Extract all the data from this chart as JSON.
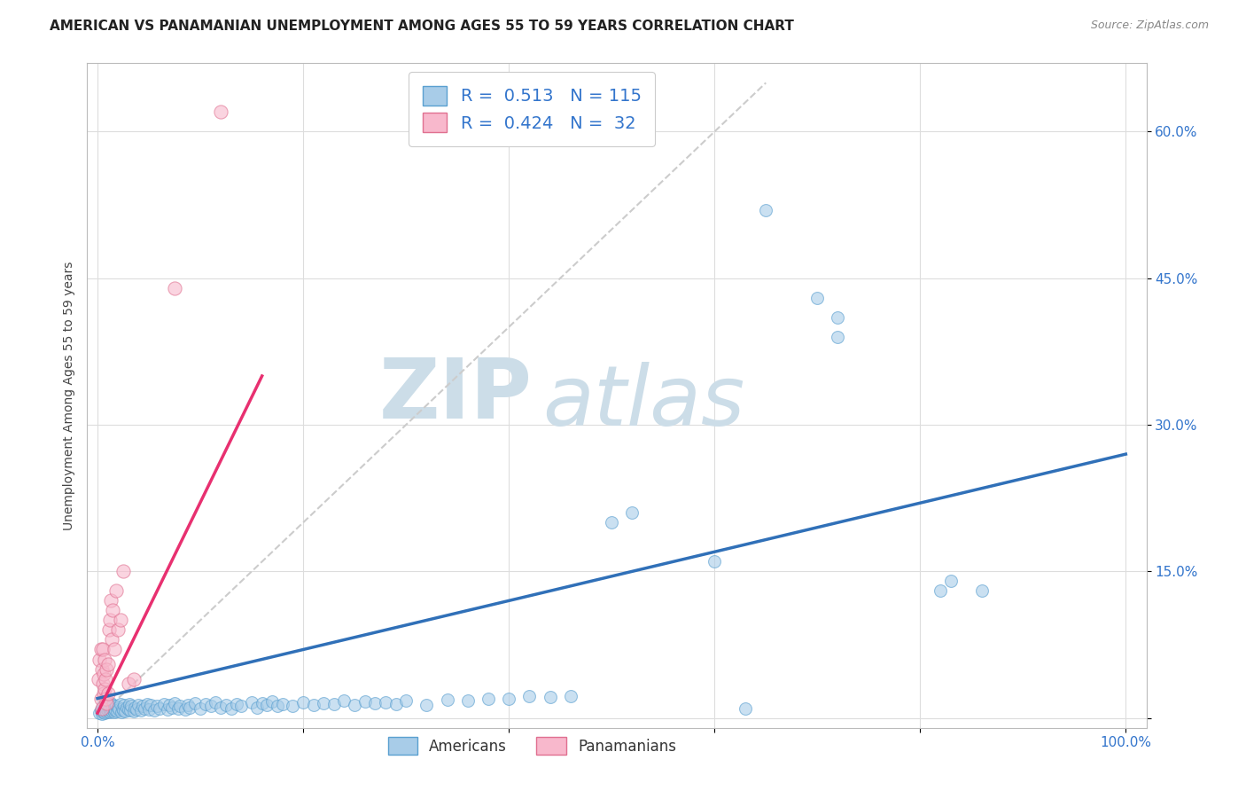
{
  "title": "AMERICAN VS PANAMANIAN UNEMPLOYMENT AMONG AGES 55 TO 59 YEARS CORRELATION CHART",
  "source": "Source: ZipAtlas.com",
  "ylabel": "Unemployment Among Ages 55 to 59 years",
  "xlim": [
    -0.01,
    1.02
  ],
  "ylim": [
    -0.01,
    0.67
  ],
  "xticks": [
    0.0,
    0.2,
    0.4,
    0.6,
    0.8,
    1.0
  ],
  "xticklabels": [
    "0.0%",
    "",
    "",
    "",
    "",
    "100.0%"
  ],
  "ytick_positions": [
    0.0,
    0.15,
    0.3,
    0.45,
    0.6
  ],
  "yticklabels": [
    "",
    "15.0%",
    "30.0%",
    "45.0%",
    "60.0%"
  ],
  "american_R": 0.513,
  "american_N": 115,
  "panamanian_R": 0.424,
  "panamanian_N": 32,
  "blue_color": "#a8cce8",
  "blue_edge_color": "#5aa0d0",
  "blue_line_color": "#3070b8",
  "pink_color": "#f8b8cc",
  "pink_edge_color": "#e07090",
  "pink_line_color": "#e83070",
  "dashed_line_color": "#cccccc",
  "legend_text_color": "#3375cc",
  "watermark_color": "#ccdde8",
  "background_color": "#ffffff",
  "title_fontsize": 11,
  "axis_label_fontsize": 10,
  "tick_label_fontsize": 11,
  "legend_fontsize": 14,
  "american_x": [
    0.002,
    0.003,
    0.004,
    0.004,
    0.005,
    0.005,
    0.006,
    0.006,
    0.007,
    0.007,
    0.008,
    0.008,
    0.009,
    0.009,
    0.01,
    0.01,
    0.011,
    0.011,
    0.012,
    0.012,
    0.013,
    0.013,
    0.014,
    0.014,
    0.015,
    0.015,
    0.016,
    0.016,
    0.017,
    0.018,
    0.019,
    0.02,
    0.021,
    0.022,
    0.023,
    0.024,
    0.025,
    0.026,
    0.027,
    0.028,
    0.03,
    0.031,
    0.032,
    0.033,
    0.035,
    0.036,
    0.038,
    0.04,
    0.042,
    0.044,
    0.046,
    0.048,
    0.05,
    0.052,
    0.055,
    0.058,
    0.06,
    0.065,
    0.068,
    0.07,
    0.072,
    0.075,
    0.078,
    0.08,
    0.085,
    0.088,
    0.09,
    0.095,
    0.1,
    0.105,
    0.11,
    0.115,
    0.12,
    0.125,
    0.13,
    0.135,
    0.14,
    0.15,
    0.155,
    0.16,
    0.165,
    0.17,
    0.175,
    0.18,
    0.19,
    0.2,
    0.21,
    0.22,
    0.23,
    0.24,
    0.25,
    0.26,
    0.27,
    0.28,
    0.29,
    0.3,
    0.32,
    0.34,
    0.36,
    0.38,
    0.4,
    0.42,
    0.44,
    0.46,
    0.5,
    0.52,
    0.6,
    0.63,
    0.65,
    0.7,
    0.72,
    0.72,
    0.82,
    0.83,
    0.86
  ],
  "american_y": [
    0.005,
    0.008,
    0.004,
    0.01,
    0.006,
    0.012,
    0.007,
    0.009,
    0.005,
    0.011,
    0.008,
    0.013,
    0.006,
    0.01,
    0.007,
    0.014,
    0.009,
    0.012,
    0.006,
    0.01,
    0.008,
    0.015,
    0.007,
    0.011,
    0.009,
    0.013,
    0.006,
    0.01,
    0.008,
    0.012,
    0.007,
    0.011,
    0.009,
    0.014,
    0.006,
    0.01,
    0.008,
    0.013,
    0.007,
    0.011,
    0.009,
    0.014,
    0.008,
    0.012,
    0.007,
    0.011,
    0.009,
    0.013,
    0.008,
    0.012,
    0.01,
    0.014,
    0.009,
    0.013,
    0.008,
    0.012,
    0.01,
    0.014,
    0.009,
    0.013,
    0.011,
    0.015,
    0.01,
    0.012,
    0.009,
    0.013,
    0.011,
    0.015,
    0.01,
    0.014,
    0.012,
    0.016,
    0.011,
    0.013,
    0.01,
    0.014,
    0.012,
    0.016,
    0.011,
    0.015,
    0.013,
    0.017,
    0.012,
    0.014,
    0.012,
    0.016,
    0.013,
    0.015,
    0.014,
    0.018,
    0.013,
    0.017,
    0.015,
    0.016,
    0.014,
    0.018,
    0.013,
    0.019,
    0.018,
    0.02,
    0.02,
    0.022,
    0.021,
    0.022,
    0.2,
    0.21,
    0.16,
    0.01,
    0.52,
    0.43,
    0.41,
    0.39,
    0.13,
    0.14,
    0.13
  ],
  "panamanian_x": [
    0.001,
    0.002,
    0.003,
    0.003,
    0.004,
    0.004,
    0.005,
    0.005,
    0.006,
    0.006,
    0.007,
    0.007,
    0.008,
    0.008,
    0.009,
    0.009,
    0.01,
    0.01,
    0.011,
    0.012,
    0.013,
    0.014,
    0.015,
    0.016,
    0.018,
    0.02,
    0.022,
    0.025,
    0.03,
    0.035,
    0.075,
    0.12
  ],
  "panamanian_y": [
    0.04,
    0.06,
    0.07,
    0.02,
    0.05,
    0.01,
    0.035,
    0.07,
    0.025,
    0.045,
    0.03,
    0.06,
    0.02,
    0.04,
    0.015,
    0.05,
    0.025,
    0.055,
    0.09,
    0.1,
    0.12,
    0.08,
    0.11,
    0.07,
    0.13,
    0.09,
    0.1,
    0.15,
    0.035,
    0.04,
    0.44,
    0.62
  ],
  "blue_line_x": [
    0.0,
    1.0
  ],
  "blue_line_y": [
    0.02,
    0.27
  ],
  "pink_line_x": [
    0.0,
    0.16
  ],
  "pink_line_y": [
    0.005,
    0.35
  ],
  "dash_line_x": [
    0.0,
    0.65
  ],
  "dash_line_y": [
    0.0,
    0.65
  ]
}
